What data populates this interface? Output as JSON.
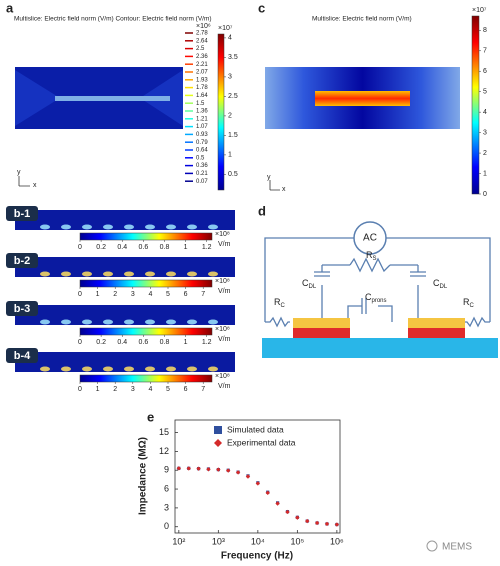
{
  "panels": {
    "a": {
      "label": "a",
      "title": "Multislice: Electric field norm (V/m) Contour: Electric field norm (V/m)",
      "contour_multiplier": "×10⁶",
      "contour_levels": [
        2.78,
        2.64,
        2.5,
        2.36,
        2.21,
        2.07,
        1.93,
        1.78,
        1.64,
        1.5,
        1.36,
        1.21,
        1.07,
        0.93,
        0.79,
        0.64,
        0.5,
        0.36,
        0.21,
        0.07
      ],
      "colorbar": {
        "multiplier": "×10⁷",
        "range": [
          0.1,
          4.1
        ],
        "ticks": [
          0.5,
          1,
          1.5,
          2,
          2.5,
          3,
          3.5,
          4
        ]
      },
      "axes": [
        "y",
        "x"
      ]
    },
    "b": {
      "strips": [
        {
          "label": "b-1",
          "colorbar": {
            "multiplier": "×10⁸",
            "unit": "V/m",
            "range": [
              0,
              1.25
            ],
            "ticks": [
              0,
              0.2,
              0.4,
              0.6,
              0.8,
              1,
              1.2
            ]
          }
        },
        {
          "label": "b-2",
          "colorbar": {
            "multiplier": "×10⁸",
            "unit": "V/m",
            "range": [
              0,
              7.5
            ],
            "ticks": [
              0,
              1,
              2,
              3,
              4,
              5,
              6,
              7
            ]
          }
        },
        {
          "label": "b-3",
          "colorbar": {
            "multiplier": "×10⁸",
            "unit": "V/m",
            "range": [
              0,
              1.25
            ],
            "ticks": [
              0,
              0.2,
              0.4,
              0.6,
              0.8,
              1,
              1.2
            ]
          }
        },
        {
          "label": "b-4",
          "colorbar": {
            "multiplier": "×10⁸",
            "unit": "V/m",
            "range": [
              0,
              7.5
            ],
            "ticks": [
              0,
              1,
              2,
              3,
              4,
              5,
              6,
              7
            ]
          }
        }
      ]
    },
    "c": {
      "label": "c",
      "title": "Multislice: Electric field norm (V/m)",
      "colorbar": {
        "multiplier": "×10⁷",
        "range": [
          0,
          8.7
        ],
        "ticks": [
          0,
          1,
          2,
          3,
          4,
          5,
          6,
          7,
          8
        ]
      },
      "axes": [
        "y",
        "x"
      ]
    },
    "d": {
      "label": "d",
      "source": "AC",
      "Rs": {
        "main": "R",
        "sub": "S"
      },
      "Cdl": {
        "main": "C",
        "sub": "DL"
      },
      "Cprons": {
        "main": "C",
        "sub": "prons"
      },
      "Rc": {
        "main": "R",
        "sub": "C"
      }
    }
  },
  "chart_data": {
    "type": "scatter",
    "panel_label": "e",
    "xlabel": "Frequency (Hz)",
    "ylabel": "Impedance (MΩ)",
    "xscale": "log",
    "x": [
      100,
      178,
      316,
      562,
      1000,
      1778,
      3162,
      5623,
      10000,
      17783,
      31623,
      56234,
      100000,
      177828,
      316228,
      562341,
      1000000
    ],
    "series": [
      {
        "name": "Simulated data",
        "color": "#2f4f9e",
        "marker": "square",
        "values": [
          9.3,
          9.3,
          9.25,
          9.2,
          9.1,
          9.0,
          8.7,
          8.1,
          7.0,
          5.5,
          3.8,
          2.4,
          1.5,
          0.9,
          0.6,
          0.45,
          0.35
        ]
      },
      {
        "name": "Experimental data",
        "color": "#d42a2a",
        "marker": "diamond",
        "values": [
          9.3,
          9.28,
          9.25,
          9.15,
          9.1,
          8.95,
          8.65,
          8.0,
          6.9,
          5.4,
          3.7,
          2.35,
          1.45,
          0.9,
          0.6,
          0.45,
          0.35
        ]
      }
    ],
    "xlim": [
      80,
      1200000
    ],
    "xticks": [
      {
        "value": 100,
        "label": "10²"
      },
      {
        "value": 1000,
        "label": "10³"
      },
      {
        "value": 10000,
        "label": "10⁴"
      },
      {
        "value": 100000,
        "label": "10⁵"
      },
      {
        "value": 1000000,
        "label": "10⁶"
      }
    ],
    "ylim": [
      -1,
      17
    ],
    "yticks": [
      0,
      3,
      6,
      9,
      12,
      15
    ],
    "legend": "upper right"
  },
  "watermark": "MEMS"
}
